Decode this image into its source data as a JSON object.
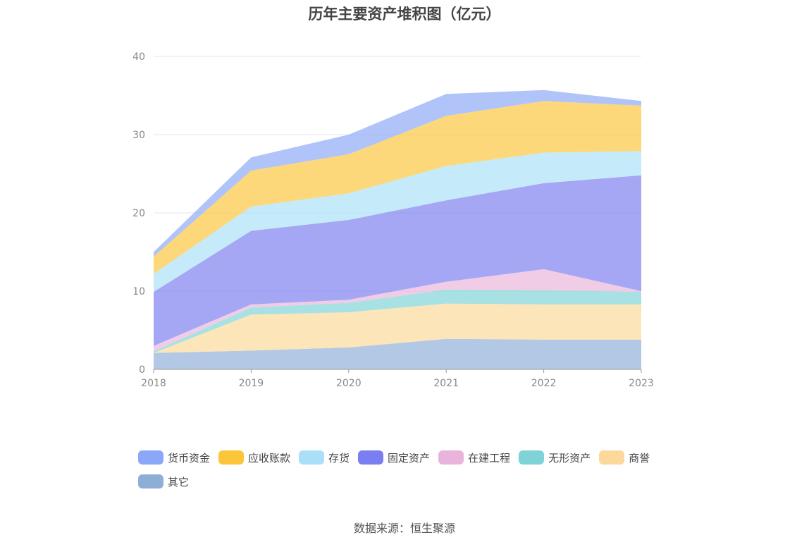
{
  "chart_data": {
    "type": "area",
    "stacked": true,
    "title": "历年主要资产堆积图（亿元）",
    "x": [
      "2018",
      "2019",
      "2020",
      "2021",
      "2022",
      "2023"
    ],
    "ylim": [
      0,
      40
    ],
    "yticks": [
      "0",
      "10",
      "20",
      "30",
      "40"
    ],
    "grid": true,
    "legend_position": "bottom",
    "series": [
      {
        "name": "其它",
        "color": "#8eaed8",
        "values": [
          2.1,
          2.4,
          2.8,
          3.9,
          3.8,
          3.8
        ]
      },
      {
        "name": "商誉",
        "color": "#fcd89a",
        "values": [
          0.0,
          4.6,
          4.5,
          4.5,
          4.5,
          4.5
        ]
      },
      {
        "name": "无形资产",
        "color": "#7fd3d6",
        "values": [
          0.2,
          0.9,
          1.2,
          1.8,
          1.8,
          1.6
        ]
      },
      {
        "name": "在建工程",
        "color": "#e9b4dc",
        "values": [
          0.7,
          0.4,
          0.4,
          1.0,
          2.7,
          0.1
        ]
      },
      {
        "name": "固定资产",
        "color": "#7b7ef0",
        "values": [
          6.9,
          9.4,
          10.2,
          10.4,
          11.0,
          14.8
        ]
      },
      {
        "name": "存货",
        "color": "#a9e0f8",
        "values": [
          2.3,
          3.1,
          3.4,
          4.4,
          3.9,
          3.1
        ]
      },
      {
        "name": "应收账款",
        "color": "#fcc63b",
        "values": [
          2.2,
          4.6,
          5.0,
          6.4,
          6.6,
          5.8
        ]
      },
      {
        "name": "货币资金",
        "color": "#8ba8f8",
        "values": [
          0.6,
          1.7,
          2.5,
          2.8,
          1.4,
          0.6
        ]
      }
    ],
    "legend_order": [
      "货币资金",
      "应收账款",
      "存货",
      "固定资产",
      "在建工程",
      "无形资产",
      "商誉",
      "其它"
    ]
  },
  "source_text": "数据来源：恒生聚源"
}
